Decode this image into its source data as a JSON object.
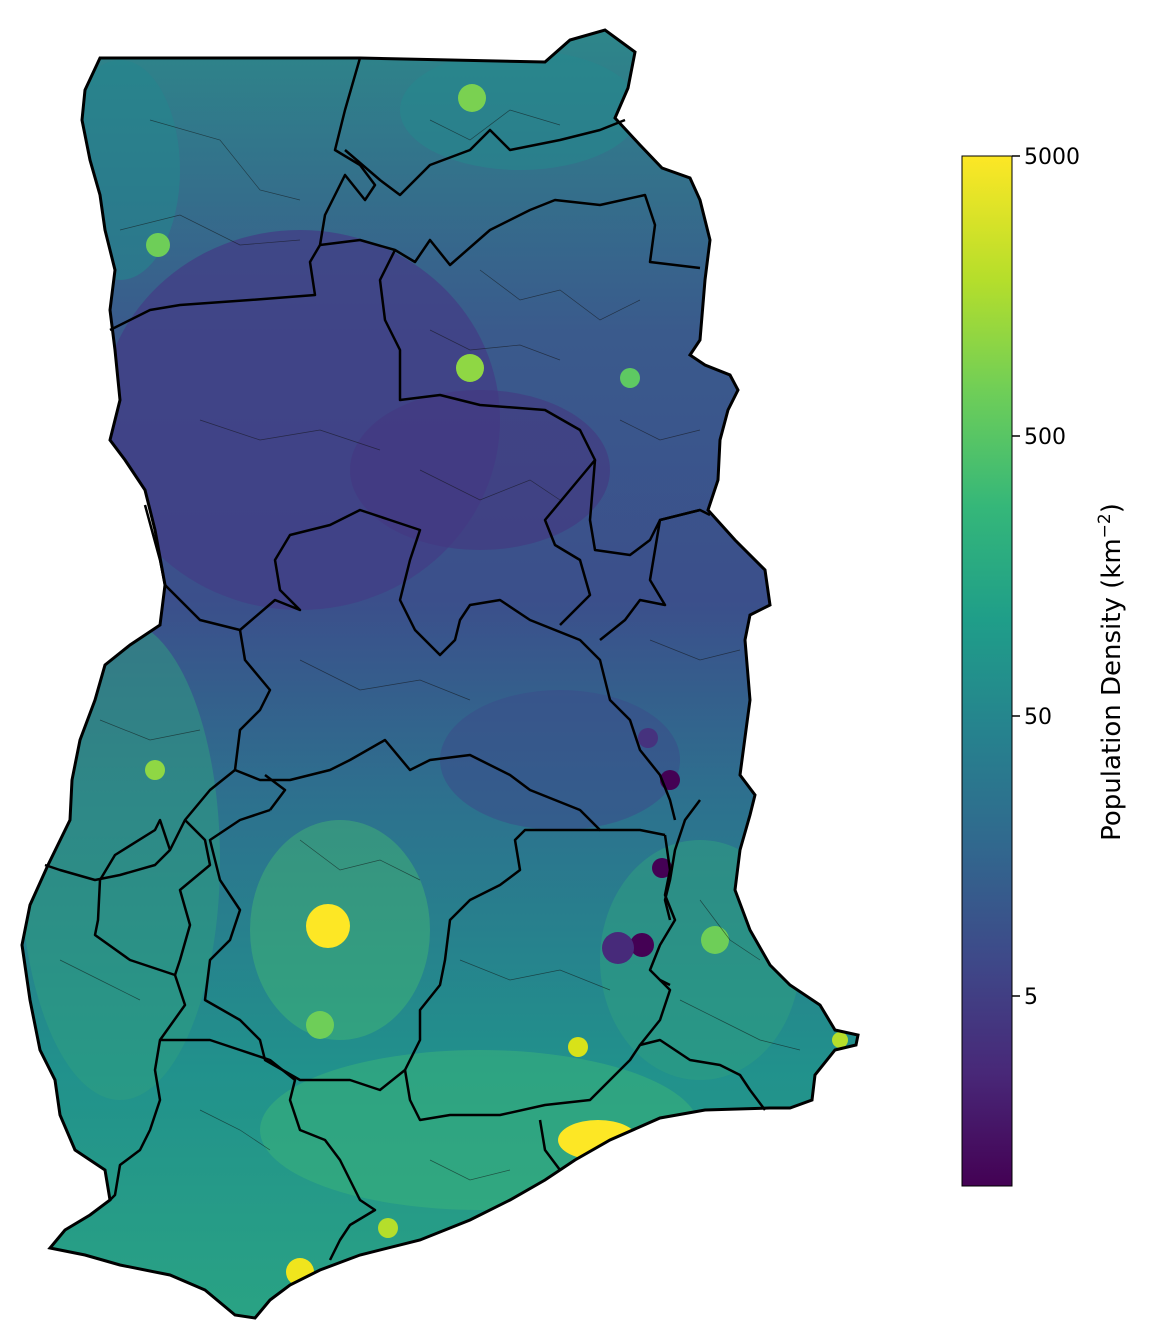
{
  "map": {
    "subject": "Ghana",
    "region_outline_color": "#000000",
    "district_outline_color": "#1a1a1a",
    "colormap": "viridis",
    "hotspot_colors": {
      "high": "#fde725",
      "mid": "#5ec962",
      "low": "#440154"
    }
  },
  "colorbar": {
    "title": "Population Density (km",
    "title_exponent": "−2",
    "title_close": ")",
    "scale": "log",
    "ticks": [
      {
        "value": 5000,
        "label": "5000"
      },
      {
        "value": 500,
        "label": "500"
      },
      {
        "value": 50,
        "label": "50"
      },
      {
        "value": 5,
        "label": "5"
      }
    ],
    "range_max": 5000,
    "stops": [
      "#440154",
      "#482878",
      "#3e4989",
      "#31688e",
      "#26828e",
      "#1f9e89",
      "#35b779",
      "#6ece58",
      "#b5de2b",
      "#fde725"
    ]
  }
}
